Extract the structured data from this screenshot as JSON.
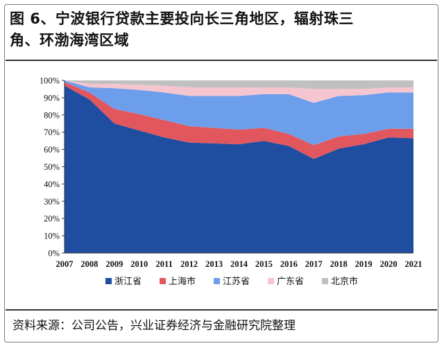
{
  "title_lines": [
    "图 6、宁波银行贷款主要投向长三角地区，辐射珠三",
    "角、环渤海湾区域"
  ],
  "source": "资料来源：公司公告，兴业证券经济与金融研究院整理",
  "chart_data": {
    "type": "area",
    "stacked": true,
    "title": "图 6、宁波银行贷款主要投向长三角地区，辐射珠三角、环渤海湾区域",
    "xlabel": "",
    "ylabel": "",
    "x": [
      "2007",
      "2008",
      "2009",
      "2010",
      "2011",
      "2012",
      "2013",
      "2014",
      "2015",
      "2016",
      "2017",
      "2018",
      "2019",
      "2020",
      "2021"
    ],
    "ylim": [
      0,
      100
    ],
    "yticks": [
      "0%",
      "10%",
      "20%",
      "30%",
      "40%",
      "50%",
      "60%",
      "70%",
      "80%",
      "90%",
      "100%"
    ],
    "grid": false,
    "legend_position": "bottom",
    "series": [
      {
        "name": "浙江省",
        "color": "#1f4ea1",
        "values": [
          97,
          89,
          75,
          71,
          67,
          64,
          63.5,
          63,
          65,
          62,
          54.5,
          60.5,
          63,
          67,
          66.5
        ]
      },
      {
        "name": "上海市",
        "color": "#e2575e",
        "values": [
          2,
          4,
          8.5,
          9.5,
          10,
          9.5,
          9,
          8.5,
          7.5,
          7,
          8,
          7,
          6,
          5,
          5.5
        ]
      },
      {
        "name": "江苏省",
        "color": "#6d9eeb",
        "values": [
          1,
          3,
          12,
          14,
          16,
          17.5,
          18.5,
          19.5,
          19.5,
          23,
          24.5,
          23.5,
          22.5,
          21,
          21
        ]
      },
      {
        "name": "广东省",
        "color": "#f5c5d0",
        "values": [
          0,
          2,
          2.5,
          3,
          4,
          5,
          5,
          5,
          4,
          4,
          8,
          4,
          3.5,
          3,
          3
        ]
      },
      {
        "name": "北京市",
        "color": "#c0c0c0",
        "values": [
          0,
          2,
          2,
          2.5,
          3,
          4,
          4,
          4,
          4,
          4,
          5,
          5,
          5,
          4,
          4
        ]
      }
    ]
  }
}
